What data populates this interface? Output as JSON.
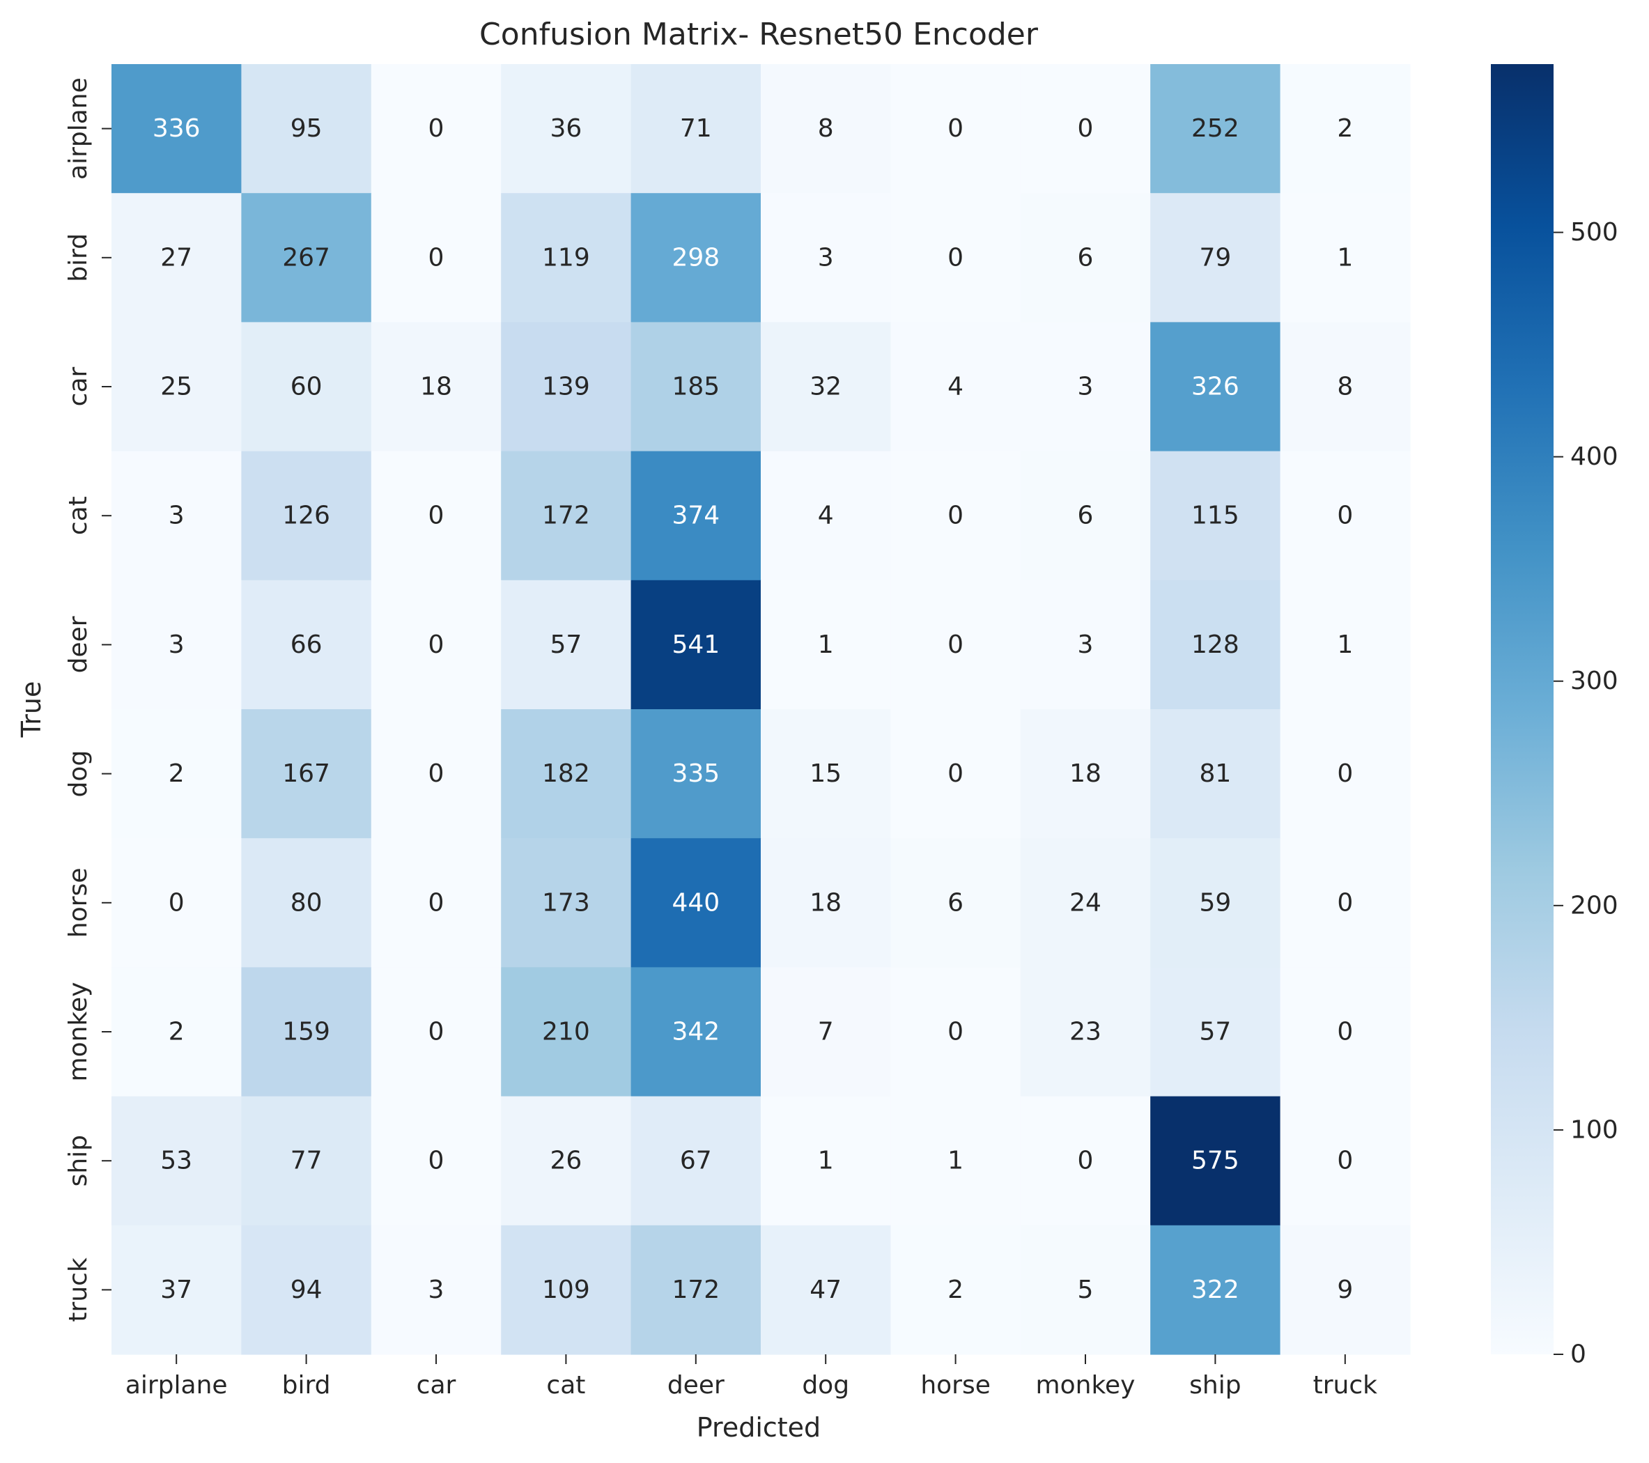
{
  "chart_data": {
    "type": "heatmap",
    "title": "Confusion Matrix- Resnet50 Encoder",
    "xlabel": "Predicted",
    "ylabel": "True",
    "x_categories": [
      "airplane",
      "bird",
      "car",
      "cat",
      "deer",
      "dog",
      "horse",
      "monkey",
      "ship",
      "truck"
    ],
    "y_categories": [
      "airplane",
      "bird",
      "car",
      "cat",
      "deer",
      "dog",
      "horse",
      "monkey",
      "ship",
      "truck"
    ],
    "values": [
      [
        336,
        95,
        0,
        36,
        71,
        8,
        0,
        0,
        252,
        2
      ],
      [
        27,
        267,
        0,
        119,
        298,
        3,
        0,
        6,
        79,
        1
      ],
      [
        25,
        60,
        18,
        139,
        185,
        32,
        4,
        3,
        326,
        8
      ],
      [
        3,
        126,
        0,
        172,
        374,
        4,
        0,
        6,
        115,
        0
      ],
      [
        3,
        66,
        0,
        57,
        541,
        1,
        0,
        3,
        128,
        1
      ],
      [
        2,
        167,
        0,
        182,
        335,
        15,
        0,
        18,
        81,
        0
      ],
      [
        0,
        80,
        0,
        173,
        440,
        18,
        6,
        24,
        59,
        0
      ],
      [
        2,
        159,
        0,
        210,
        342,
        7,
        0,
        23,
        57,
        0
      ],
      [
        53,
        77,
        0,
        26,
        67,
        1,
        1,
        0,
        575,
        0
      ],
      [
        37,
        94,
        3,
        109,
        172,
        47,
        2,
        5,
        322,
        9
      ]
    ],
    "colormap": "Blues",
    "colorbar": {
      "range": [
        0,
        575
      ],
      "ticks": [
        0,
        100,
        200,
        300,
        400,
        500
      ]
    }
  }
}
